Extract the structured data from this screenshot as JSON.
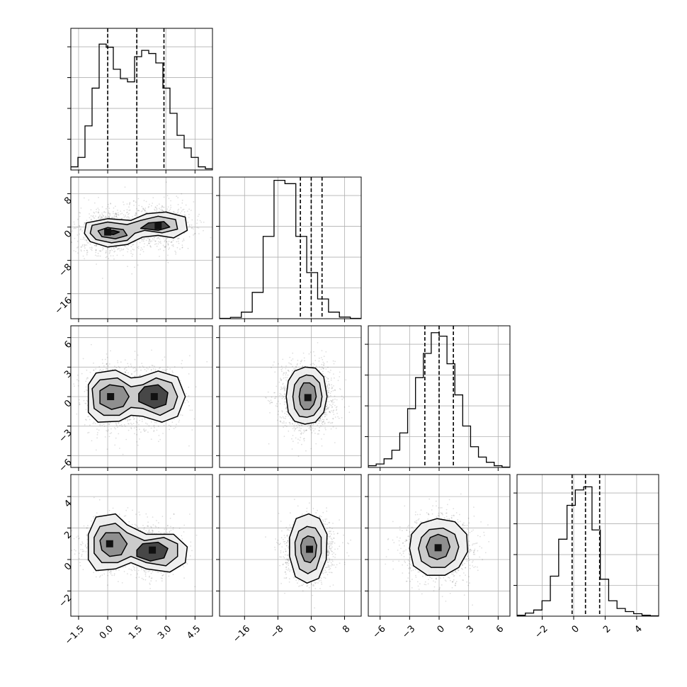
{
  "chart_data": {
    "type": "corner",
    "grid": true,
    "parameters": [
      {
        "range": [
          -1.9,
          5.4
        ],
        "ticks": [
          -1.5,
          0.0,
          1.5,
          3.0,
          4.5
        ],
        "tick_labels": [
          "−1.5",
          "0.0",
          "1.5",
          "3.0",
          "4.5"
        ],
        "quantile_lines": [
          0.0,
          1.5,
          2.9
        ],
        "hist": [
          0.5,
          2,
          7,
          13,
          20,
          19.5,
          16,
          14.5,
          14,
          18,
          19,
          18.5,
          17,
          13,
          9,
          5.5,
          3.5,
          2,
          0.5,
          0.2
        ],
        "hist_ymax": 22.5
      },
      {
        "range": [
          -22,
          12
        ],
        "ticks": [
          -16,
          -8,
          0,
          8
        ],
        "tick_labels": [
          "−16",
          "−8",
          "0",
          "8"
        ],
        "quantile_lines": [
          -2.6,
          0,
          2.6
        ],
        "hist": [
          0.1,
          0.4,
          2,
          8,
          25,
          42,
          41,
          25,
          14,
          6,
          2,
          0.5,
          0.1
        ],
        "hist_ymax": 43
      },
      {
        "range": [
          -7.2,
          7.2
        ],
        "ticks": [
          -6,
          -3,
          0,
          3,
          6
        ],
        "tick_labels": [
          "−6",
          "−3",
          "0",
          "3",
          "6"
        ],
        "quantile_lines": [
          -1.45,
          0,
          1.45
        ],
        "hist": [
          0.5,
          1,
          2.5,
          5,
          10,
          17,
          26,
          33,
          39,
          38,
          30,
          21,
          12,
          6,
          3,
          1.5,
          0.5,
          0.1
        ],
        "hist_ymax": 41
      },
      {
        "range": [
          -3.6,
          5.4
        ],
        "ticks": [
          -2,
          0,
          2,
          4
        ],
        "tick_labels": [
          "−2",
          "0",
          "2",
          "4"
        ],
        "quantile_lines": [
          -0.1,
          0.75,
          1.65
        ],
        "hist": [
          0.3,
          1,
          2,
          5,
          13,
          25,
          36,
          41,
          42,
          28,
          12,
          5,
          2.5,
          1.5,
          0.8,
          0.3,
          0.1
        ],
        "hist_ymax": 46
      }
    ],
    "panels_2d": [
      {
        "row": 1,
        "col": 0,
        "modes": [
          {
            "x": 0.0,
            "y": -1.2,
            "sx": 0.6,
            "sy": 2.2,
            "w": 1.0
          },
          {
            "x": 2.6,
            "y": 0.3,
            "sx": 0.7,
            "sy": 2.2,
            "w": 0.85
          }
        ],
        "contours": [
          [
            [
              -0.9,
              -3.5
            ],
            [
              0.0,
              -4.8
            ],
            [
              1.0,
              -4.2
            ],
            [
              1.8,
              -2.4
            ],
            [
              2.6,
              -2.0
            ],
            [
              3.4,
              -2.6
            ],
            [
              4.1,
              -0.8
            ],
            [
              4.0,
              2.4
            ],
            [
              3.0,
              3.6
            ],
            [
              2.0,
              3.2
            ],
            [
              1.2,
              1.6
            ],
            [
              0.0,
              2.0
            ],
            [
              -1.1,
              1.0
            ],
            [
              -1.2,
              -1.5
            ]
          ],
          [
            [
              -0.6,
              -3.0
            ],
            [
              0.2,
              -3.8
            ],
            [
              1.0,
              -3.2
            ],
            [
              1.4,
              -1.5
            ],
            [
              1.9,
              -0.8
            ],
            [
              2.8,
              -1.4
            ],
            [
              3.6,
              -0.5
            ],
            [
              3.5,
              1.8
            ],
            [
              2.6,
              2.6
            ],
            [
              1.7,
              1.6
            ],
            [
              1.0,
              0.6
            ],
            [
              0.0,
              1.2
            ],
            [
              -0.8,
              0.4
            ],
            [
              -0.9,
              -1.5
            ]
          ],
          [
            [
              -0.3,
              -2.3
            ],
            [
              0.4,
              -2.8
            ],
            [
              1.0,
              -2.0
            ],
            [
              0.8,
              -0.6
            ],
            [
              0.0,
              -0.1
            ],
            [
              -0.5,
              -0.9
            ]
          ],
          [
            [
              1.7,
              -0.3
            ],
            [
              2.6,
              -0.8
            ],
            [
              3.2,
              0.0
            ],
            [
              2.9,
              1.3
            ],
            [
              2.1,
              1.0
            ]
          ],
          [
            [
              -0.1,
              -1.6
            ],
            [
              0.3,
              -1.8
            ],
            [
              0.6,
              -1.2
            ],
            [
              0.3,
              -0.8
            ],
            [
              -0.1,
              -1.0
            ]
          ]
        ]
      },
      {
        "row": 2,
        "col": 0,
        "modes": [
          {
            "x": 0.15,
            "y": 0.0,
            "sx": 0.55,
            "sy": 1.3,
            "w": 1.0
          },
          {
            "x": 2.4,
            "y": 0.0,
            "sx": 0.6,
            "sy": 1.3,
            "w": 0.9
          }
        ],
        "contours": [
          [
            [
              -1.0,
              -1.6
            ],
            [
              -0.5,
              -2.6
            ],
            [
              0.6,
              -2.5
            ],
            [
              1.2,
              -1.9
            ],
            [
              1.8,
              -2.0
            ],
            [
              2.8,
              -2.6
            ],
            [
              3.6,
              -2.0
            ],
            [
              4.0,
              0.0
            ],
            [
              3.6,
              2.0
            ],
            [
              2.6,
              2.6
            ],
            [
              1.7,
              2.0
            ],
            [
              1.2,
              1.9
            ],
            [
              0.4,
              2.7
            ],
            [
              -0.6,
              2.4
            ],
            [
              -1.0,
              1.2
            ]
          ],
          [
            [
              -0.7,
              -1.2
            ],
            [
              -0.2,
              -1.9
            ],
            [
              0.6,
              -1.9
            ],
            [
              1.2,
              -1.1
            ],
            [
              1.8,
              -1.2
            ],
            [
              2.7,
              -1.9
            ],
            [
              3.4,
              -1.2
            ],
            [
              3.6,
              0.0
            ],
            [
              3.3,
              1.4
            ],
            [
              2.5,
              1.9
            ],
            [
              1.8,
              1.2
            ],
            [
              1.2,
              1.0
            ],
            [
              0.5,
              1.9
            ],
            [
              -0.4,
              1.7
            ],
            [
              -0.8,
              0.8
            ]
          ],
          [
            [
              -0.4,
              -0.7
            ],
            [
              0.2,
              -1.3
            ],
            [
              0.8,
              -1.0
            ],
            [
              1.1,
              0.0
            ],
            [
              0.8,
              1.0
            ],
            [
              0.1,
              1.2
            ],
            [
              -0.4,
              0.6
            ]
          ],
          [
            [
              1.6,
              -0.5
            ],
            [
              2.4,
              -1.2
            ],
            [
              3.0,
              -0.8
            ],
            [
              3.1,
              0.4
            ],
            [
              2.6,
              1.2
            ],
            [
              1.9,
              1.0
            ],
            [
              1.6,
              0.3
            ]
          ]
        ]
      },
      {
        "row": 2,
        "col": 1,
        "modes": [
          {
            "x": -0.8,
            "y": -0.1,
            "sx": 2.6,
            "sy": 1.35,
            "w": 1.0
          }
        ],
        "contours": [
          [
            [
              -5.5,
              -1.6
            ],
            [
              -4.0,
              -2.5
            ],
            [
              -1.5,
              -2.8
            ],
            [
              1.0,
              -2.6
            ],
            [
              3.0,
              -1.6
            ],
            [
              3.8,
              0.0
            ],
            [
              3.0,
              2.0
            ],
            [
              1.0,
              2.9
            ],
            [
              -1.5,
              3.0
            ],
            [
              -4.0,
              2.6
            ],
            [
              -5.5,
              1.6
            ],
            [
              -6.0,
              0.0
            ]
          ],
          [
            [
              -4.0,
              -1.2
            ],
            [
              -2.8,
              -2.0
            ],
            [
              -1.0,
              -2.1
            ],
            [
              0.6,
              -1.9
            ],
            [
              2.2,
              -1.0
            ],
            [
              2.6,
              0.0
            ],
            [
              2.0,
              1.4
            ],
            [
              0.4,
              2.1
            ],
            [
              -1.2,
              2.2
            ],
            [
              -2.8,
              1.9
            ],
            [
              -4.0,
              1.2
            ],
            [
              -4.4,
              0.0
            ]
          ],
          [
            [
              -2.6,
              -0.8
            ],
            [
              -1.8,
              -1.3
            ],
            [
              -0.4,
              -1.3
            ],
            [
              0.6,
              -0.8
            ],
            [
              1.2,
              0.0
            ],
            [
              0.8,
              1.0
            ],
            [
              -0.4,
              1.4
            ],
            [
              -1.8,
              1.4
            ],
            [
              -2.6,
              0.8
            ],
            [
              -2.9,
              0.0
            ]
          ]
        ]
      },
      {
        "row": 3,
        "col": 0,
        "modes": [
          {
            "x": 0.1,
            "y": 1.0,
            "sx": 0.55,
            "sy": 0.7,
            "w": 1.0
          },
          {
            "x": 2.3,
            "y": 0.6,
            "sx": 0.65,
            "sy": 0.65,
            "w": 0.95
          }
        ],
        "contours": [
          [
            [
              -1.0,
              0.0
            ],
            [
              -0.6,
              -0.7
            ],
            [
              0.4,
              -0.6
            ],
            [
              1.2,
              -0.2
            ],
            [
              2.0,
              -0.6
            ],
            [
              3.2,
              -0.8
            ],
            [
              4.0,
              -0.2
            ],
            [
              4.1,
              0.8
            ],
            [
              3.4,
              1.6
            ],
            [
              2.0,
              1.6
            ],
            [
              1.0,
              2.2
            ],
            [
              0.4,
              2.9
            ],
            [
              -0.6,
              2.7
            ],
            [
              -1.0,
              1.6
            ]
          ],
          [
            [
              -0.7,
              0.4
            ],
            [
              -0.3,
              -0.2
            ],
            [
              0.5,
              -0.2
            ],
            [
              1.2,
              0.2
            ],
            [
              2.0,
              -0.2
            ],
            [
              3.0,
              -0.4
            ],
            [
              3.6,
              0.2
            ],
            [
              3.6,
              1.0
            ],
            [
              2.9,
              1.4
            ],
            [
              1.9,
              1.2
            ],
            [
              1.0,
              1.7
            ],
            [
              0.4,
              2.3
            ],
            [
              -0.4,
              2.1
            ],
            [
              -0.7,
              1.4
            ]
          ],
          [
            [
              -0.3,
              0.6
            ],
            [
              0.1,
              0.2
            ],
            [
              0.7,
              0.3
            ],
            [
              1.0,
              1.0
            ],
            [
              0.6,
              1.7
            ],
            [
              -0.1,
              1.7
            ],
            [
              -0.4,
              1.2
            ]
          ],
          [
            [
              1.5,
              0.2
            ],
            [
              2.2,
              -0.1
            ],
            [
              2.9,
              0.1
            ],
            [
              3.1,
              0.7
            ],
            [
              2.6,
              1.1
            ],
            [
              1.8,
              1.0
            ],
            [
              1.5,
              0.6
            ]
          ]
        ]
      },
      {
        "row": 3,
        "col": 1,
        "modes": [
          {
            "x": -0.4,
            "y": 0.65,
            "sx": 2.3,
            "sy": 0.75,
            "w": 1.0
          }
        ],
        "contours": [
          [
            [
              -5.2,
              0.2
            ],
            [
              -3.8,
              -1.1
            ],
            [
              -1.0,
              -1.5
            ],
            [
              1.8,
              -1.2
            ],
            [
              3.6,
              0.0
            ],
            [
              3.8,
              1.6
            ],
            [
              2.0,
              2.6
            ],
            [
              -0.6,
              2.9
            ],
            [
              -3.6,
              2.6
            ],
            [
              -5.2,
              1.4
            ]
          ],
          [
            [
              -3.8,
              0.3
            ],
            [
              -2.8,
              -0.6
            ],
            [
              -0.8,
              -0.9
            ],
            [
              1.2,
              -0.6
            ],
            [
              2.4,
              0.4
            ],
            [
              2.4,
              1.4
            ],
            [
              1.0,
              2.0
            ],
            [
              -1.0,
              2.1
            ],
            [
              -3.0,
              1.8
            ],
            [
              -3.9,
              1.1
            ]
          ],
          [
            [
              -2.4,
              0.4
            ],
            [
              -1.6,
              -0.1
            ],
            [
              -0.2,
              -0.2
            ],
            [
              1.0,
              0.2
            ],
            [
              1.3,
              0.9
            ],
            [
              0.6,
              1.4
            ],
            [
              -0.8,
              1.5
            ],
            [
              -2.0,
              1.3
            ],
            [
              -2.5,
              0.9
            ]
          ]
        ]
      },
      {
        "row": 3,
        "col": 2,
        "modes": [
          {
            "x": -0.1,
            "y": 0.75,
            "sx": 1.35,
            "sy": 0.8,
            "w": 1.0
          }
        ],
        "contours": [
          [
            [
              -3.0,
              0.7
            ],
            [
              -2.6,
              -0.4
            ],
            [
              -1.2,
              -1.0
            ],
            [
              0.6,
              -1.0
            ],
            [
              2.0,
              -0.5
            ],
            [
              2.9,
              0.5
            ],
            [
              2.8,
              1.6
            ],
            [
              1.6,
              2.4
            ],
            [
              -0.2,
              2.6
            ],
            [
              -1.8,
              2.3
            ],
            [
              -2.8,
              1.6
            ]
          ],
          [
            [
              -2.1,
              0.7
            ],
            [
              -1.8,
              -0.1
            ],
            [
              -0.8,
              -0.5
            ],
            [
              0.6,
              -0.5
            ],
            [
              1.6,
              0.0
            ],
            [
              2.0,
              0.8
            ],
            [
              1.6,
              1.6
            ],
            [
              0.4,
              2.0
            ],
            [
              -1.0,
              1.9
            ],
            [
              -1.8,
              1.4
            ]
          ],
          [
            [
              -1.3,
              0.8
            ],
            [
              -1.0,
              0.2
            ],
            [
              -0.2,
              0.0
            ],
            [
              0.7,
              0.2
            ],
            [
              1.1,
              0.8
            ],
            [
              0.8,
              1.4
            ],
            [
              -0.1,
              1.6
            ],
            [
              -0.9,
              1.4
            ]
          ]
        ]
      }
    ]
  }
}
